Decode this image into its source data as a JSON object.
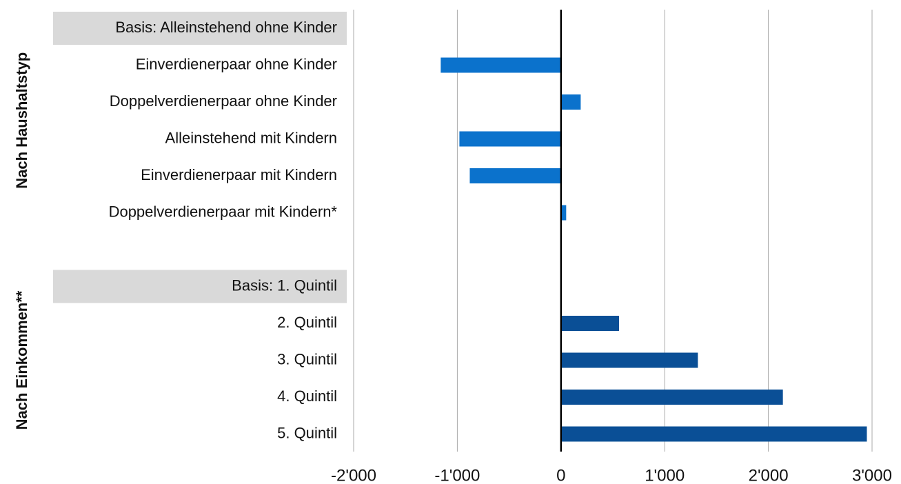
{
  "chart_data": {
    "type": "barh",
    "categories": [
      "Basis: Alleinstehend ohne Kinder",
      "Einverdienerpaar ohne Kinder",
      "Doppelverdienerpaar ohne Kinder",
      "Alleinstehend mit Kindern",
      "Einverdienerpaar mit Kindern",
      "Doppelverdienerpaar mit Kindern*",
      null,
      "Basis: 1. Quintil",
      "2. Quintil",
      "3. Quintil",
      "4. Quintil",
      "5. Quintil"
    ],
    "values": [
      null,
      -1160,
      190,
      -980,
      -880,
      50,
      null,
      null,
      560,
      1320,
      2140,
      2950
    ],
    "colors": [
      null,
      "#0b72cc",
      "#0b72cc",
      "#0b72cc",
      "#0b72cc",
      "#0b72cc",
      null,
      null,
      "#0a4f96",
      "#0a4f96",
      "#0a4f96",
      "#0a4f96"
    ],
    "shaded_categories": [
      0,
      7
    ],
    "groups": [
      {
        "label": "Nach Haushaltstyp",
        "rows": [
          0,
          5
        ]
      },
      {
        "label": "Nach Einkommen**",
        "rows": [
          7,
          11
        ]
      }
    ],
    "xlim": [
      -2000,
      3000
    ],
    "xticks": [
      {
        "value": -2000,
        "label": "-2'000"
      },
      {
        "value": -1000,
        "label": "-1'000"
      },
      0,
      {
        "value": 1000,
        "label": "1'000"
      },
      {
        "value": 2000,
        "label": "2'000"
      },
      {
        "value": 3000,
        "label": "3'000"
      }
    ],
    "grid": true
  }
}
